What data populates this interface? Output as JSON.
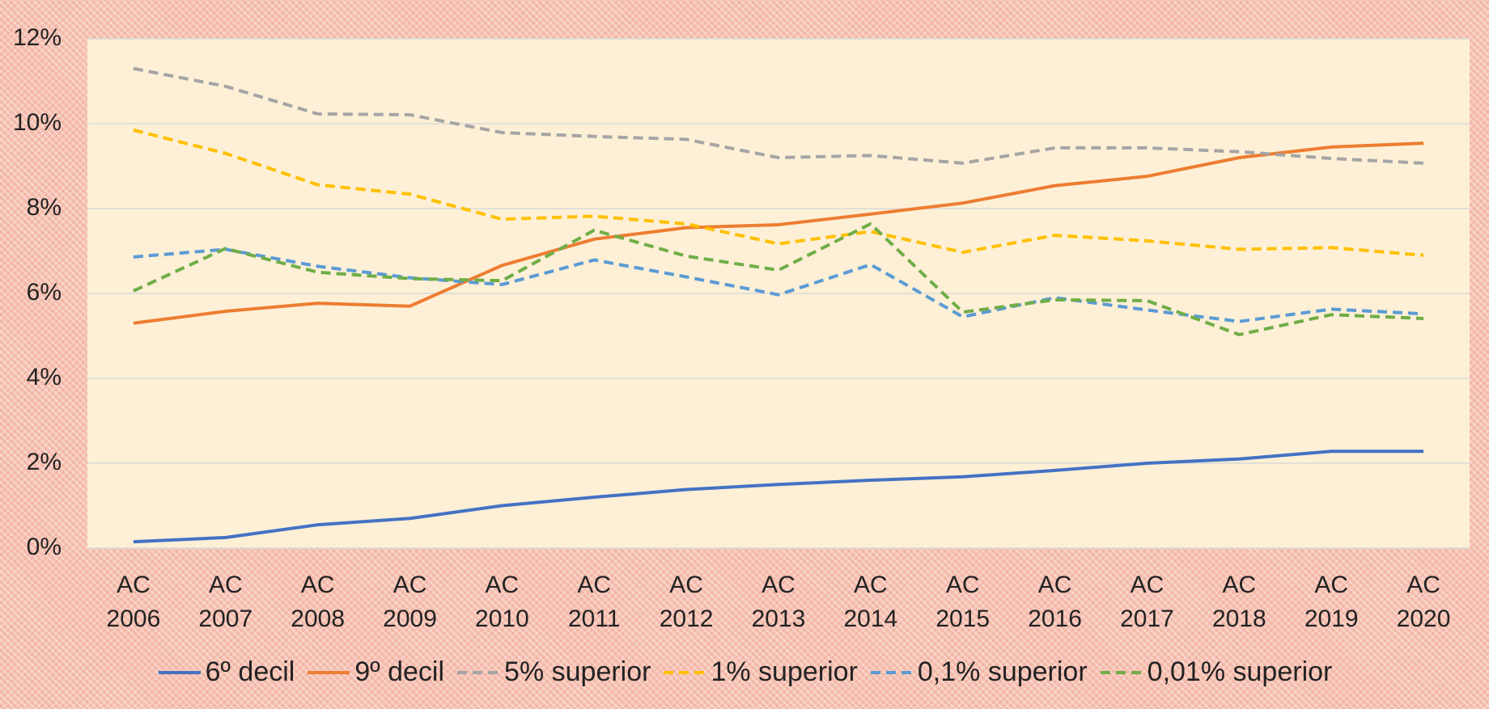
{
  "chart_data": {
    "type": "line",
    "categories": [
      "AC 2006",
      "AC 2007",
      "AC 2008",
      "AC 2009",
      "AC 2010",
      "AC 2011",
      "AC 2012",
      "AC 2013",
      "AC 2014",
      "AC 2015",
      "AC 2016",
      "AC 2017",
      "AC 2018",
      "AC 2019",
      "AC 2020"
    ],
    "series": [
      {
        "name": "6º decil",
        "color": "#4472c4",
        "dashed": false,
        "values": [
          0.15,
          0.25,
          0.55,
          0.7,
          1.0,
          1.2,
          1.38,
          1.5,
          1.6,
          1.68,
          1.83,
          2.0,
          2.1,
          2.28,
          2.28
        ]
      },
      {
        "name": "9º decil",
        "color": "#ed7d31",
        "dashed": false,
        "values": [
          5.3,
          5.58,
          5.77,
          5.7,
          6.66,
          7.28,
          7.55,
          7.62,
          7.87,
          8.13,
          8.54,
          8.76,
          9.2,
          9.45,
          9.54
        ]
      },
      {
        "name": "5% superior",
        "color": "#a5a5a5",
        "dashed": true,
        "values": [
          11.3,
          10.88,
          10.23,
          10.21,
          9.79,
          9.7,
          9.63,
          9.2,
          9.25,
          9.07,
          9.43,
          9.43,
          9.34,
          9.18,
          9.07
        ]
      },
      {
        "name": "1% superior",
        "color": "#ffc000",
        "dashed": true,
        "values": [
          9.85,
          9.3,
          8.56,
          8.34,
          7.75,
          7.82,
          7.64,
          7.17,
          7.46,
          6.97,
          7.37,
          7.24,
          7.04,
          7.08,
          6.9
        ]
      },
      {
        "name": "0,1% superior",
        "color": "#5b9bd5",
        "dashed": true,
        "values": [
          6.86,
          7.04,
          6.64,
          6.37,
          6.21,
          6.79,
          6.39,
          5.97,
          6.68,
          5.45,
          5.9,
          5.61,
          5.34,
          5.63,
          5.52
        ]
      },
      {
        "name": "0,01% superior",
        "color": "#70ad47",
        "dashed": true,
        "values": [
          6.06,
          7.06,
          6.5,
          6.35,
          6.3,
          7.49,
          6.88,
          6.55,
          7.64,
          5.56,
          5.85,
          5.83,
          5.03,
          5.5,
          5.41
        ]
      }
    ],
    "ylim": [
      0,
      12
    ],
    "yticks": [
      {
        "value": 0,
        "label": "0%"
      },
      {
        "value": 2,
        "label": "2%"
      },
      {
        "value": 4,
        "label": "4%"
      },
      {
        "value": 6,
        "label": "6%"
      },
      {
        "value": 8,
        "label": "8%"
      },
      {
        "value": 10,
        "label": "10%"
      },
      {
        "value": 12,
        "label": "12%"
      }
    ],
    "grid": true,
    "legend": "bottom"
  }
}
